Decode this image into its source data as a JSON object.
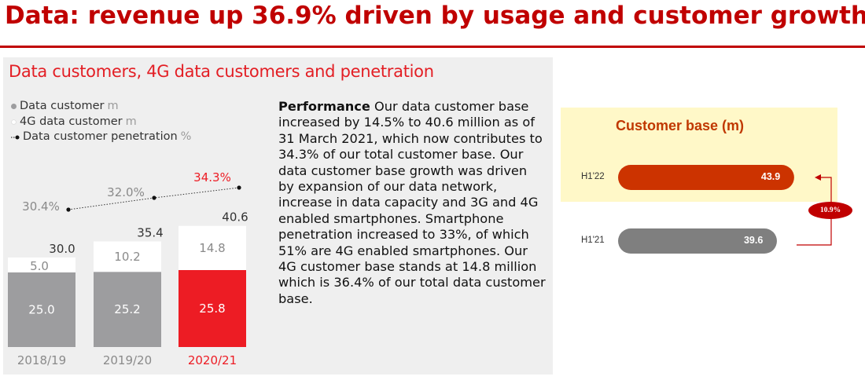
{
  "header": {
    "title": "Data: revenue up 36.9% driven by usage and customer growth"
  },
  "panel": {
    "title": "Data customers, 4G data customers and penetration",
    "legend": [
      {
        "label": "Data customer",
        "unit": "m",
        "color": "#9d9d9f",
        "marker": "dot"
      },
      {
        "label": "4G data customer",
        "unit": "m",
        "color": "#ffffff",
        "marker": "dot"
      },
      {
        "label": "Data customer penetration",
        "unit": "%",
        "color": "#111111",
        "marker": "dotted-line"
      }
    ],
    "performance_lead": "Performance",
    "performance_text": " Our data customer base increased by 14.5% to 40.6 million as of 31 March 2021, which now contributes to 34.3% of our total customer base. Our data customer base growth was driven by expansion of our data network, increase in data capacity and 3G and 4G enabled smartphones. Smartphone penetration increased to 33%, of which 51% are 4G enabled smartphones. Our 4G customer base stands at 14.8 million which is 36.4% of our total data customer base."
  },
  "chart_data": [
    {
      "type": "bar",
      "stacked": true,
      "categories": [
        "2018/19",
        "2019/20",
        "2020/21"
      ],
      "series": [
        {
          "name": "Data customer",
          "values": [
            25.0,
            25.2,
            25.8
          ],
          "value_labels": [
            "25.0",
            "25.2",
            "25.8"
          ],
          "colors": [
            "#9d9d9f",
            "#9d9d9f",
            "#ed1c24"
          ]
        },
        {
          "name": "4G data customer",
          "values": [
            5.0,
            10.2,
            14.8
          ],
          "value_labels": [
            "5.0",
            "10.2",
            "14.8"
          ],
          "color": "#ffffff"
        }
      ],
      "totals": [
        30.0,
        35.4,
        40.6
      ],
      "total_labels": [
        "30.0",
        "35.4",
        "40.6"
      ],
      "line_series": {
        "name": "Data customer penetration",
        "values": [
          30.4,
          32.0,
          34.3
        ],
        "value_labels": [
          "30.4%",
          "32.0%",
          "34.3%"
        ],
        "style": "dotted",
        "highlight_color": "#ed1c24"
      },
      "highlight_index": 2,
      "grid": false
    },
    {
      "type": "bar",
      "orientation": "horizontal",
      "title": "Customer base (m)",
      "categories": [
        "H1'22",
        "H1'21"
      ],
      "values": [
        43.9,
        39.6
      ],
      "value_labels": [
        "43.9",
        "39.6"
      ],
      "colors": [
        "#cc3300",
        "#7f7f7f"
      ],
      "growth_label": "10.9%",
      "growth_color": "#c00000"
    }
  ]
}
